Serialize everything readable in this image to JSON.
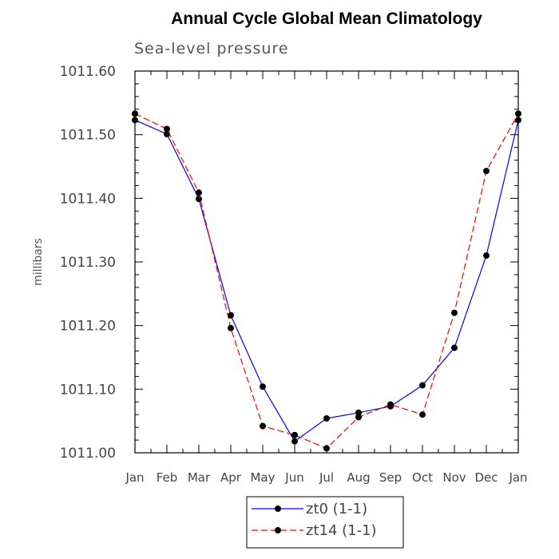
{
  "chart_data": {
    "type": "line",
    "title": "Annual Cycle Global Mean Climatology",
    "subtitle": "Sea-level pressure",
    "xlabel": "",
    "ylabel": "millibars",
    "categories": [
      "Jan",
      "Feb",
      "Mar",
      "Apr",
      "May",
      "Jun",
      "Jul",
      "Aug",
      "Sep",
      "Oct",
      "Nov",
      "Dec",
      "Jan"
    ],
    "ylim": [
      1011.0,
      1011.6
    ],
    "yticks": [
      "1011.00",
      "1011.10",
      "1011.20",
      "1011.30",
      "1011.40",
      "1011.50",
      "1011.60"
    ],
    "series": [
      {
        "name": "zt0 (1-1)",
        "color": "#0000ff",
        "style": "solid",
        "values": [
          1011.523,
          1011.501,
          1011.399,
          1011.216,
          1011.104,
          1011.018,
          1011.054,
          1011.063,
          1011.073,
          1011.106,
          1011.165,
          1011.31,
          1011.523
        ]
      },
      {
        "name": "zt14 (1-1)",
        "color": "#ff0000",
        "style": "dashed",
        "values": [
          1011.533,
          1011.509,
          1011.409,
          1011.196,
          1011.042,
          1011.028,
          1011.007,
          1011.056,
          1011.076,
          1011.06,
          1011.22,
          1011.443,
          1011.533
        ]
      }
    ],
    "grid": false,
    "legend_position": "bottom-center"
  }
}
